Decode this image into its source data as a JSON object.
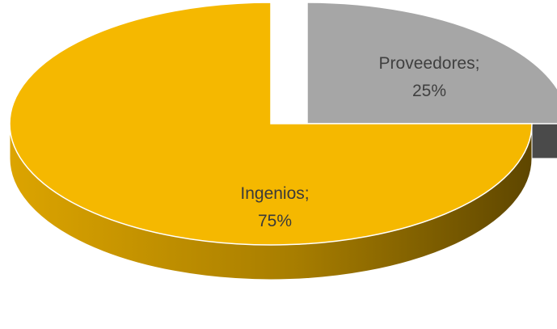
{
  "chart_data": {
    "type": "pie",
    "style": "3d-exploded",
    "categories": [
      "Proveedores",
      "Ingenios"
    ],
    "values": [
      25,
      75
    ],
    "value_format": "percent",
    "data_labels": [
      {
        "category": "Proveedores;",
        "value": "25%"
      },
      {
        "category": "Ingenios;",
        "value": "75%"
      }
    ],
    "colors": {
      "Proveedores": "#a6a6a6",
      "Ingenios": "#f5b800"
    },
    "title": "",
    "legend": "none"
  }
}
